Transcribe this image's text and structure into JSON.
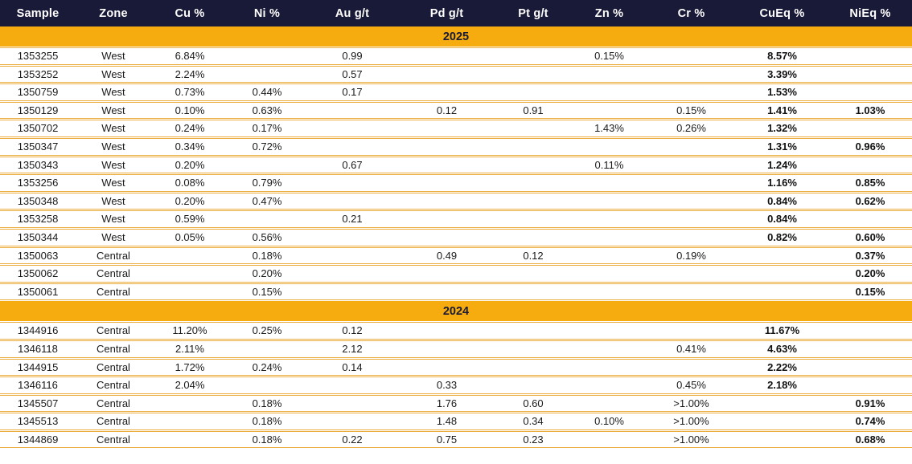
{
  "colors": {
    "header_bg": "#191938",
    "section_band": "#F6AC0E",
    "row_divider": "#ECAD3F",
    "header_text": "#FFFFFF",
    "section_text": "#191938"
  },
  "table": {
    "columns": [
      "Sample",
      "Zone",
      "Cu %",
      "Ni %",
      "Au g/t",
      "Pd g/t",
      "Pt g/t",
      "Zn %",
      "Cr %",
      "CuEq %",
      "NiEq %"
    ],
    "bold_columns": [
      9,
      10
    ],
    "sections": [
      {
        "year": "2025",
        "rows": [
          [
            "1353255",
            "West",
            "6.84%",
            "",
            "0.99",
            "",
            "",
            "0.15%",
            "",
            "8.57%",
            ""
          ],
          [
            "1353252",
            "West",
            "2.24%",
            "",
            "0.57",
            "",
            "",
            "",
            "",
            "3.39%",
            ""
          ],
          [
            "1350759",
            "West",
            "0.73%",
            "0.44%",
            "0.17",
            "",
            "",
            "",
            "",
            "1.53%",
            ""
          ],
          [
            "1350129",
            "West",
            "0.10%",
            "0.63%",
            "",
            "0.12",
            "0.91",
            "",
            "0.15%",
            "1.41%",
            "1.03%"
          ],
          [
            "1350702",
            "West",
            "0.24%",
            "0.17%",
            "",
            "",
            "",
            "1.43%",
            "0.26%",
            "1.32%",
            ""
          ],
          [
            "1350347",
            "West",
            "0.34%",
            "0.72%",
            "",
            "",
            "",
            "",
            "",
            "1.31%",
            "0.96%"
          ],
          [
            "1350343",
            "West",
            "0.20%",
            "",
            "0.67",
            "",
            "",
            "0.11%",
            "",
            "1.24%",
            ""
          ],
          [
            "1353256",
            "West",
            "0.08%",
            "0.79%",
            "",
            "",
            "",
            "",
            "",
            "1.16%",
            "0.85%"
          ],
          [
            "1350348",
            "West",
            "0.20%",
            "0.47%",
            "",
            "",
            "",
            "",
            "",
            "0.84%",
            "0.62%"
          ],
          [
            "1353258",
            "West",
            "0.59%",
            "",
            "0.21",
            "",
            "",
            "",
            "",
            "0.84%",
            ""
          ],
          [
            "1350344",
            "West",
            "0.05%",
            "0.56%",
            "",
            "",
            "",
            "",
            "",
            "0.82%",
            "0.60%"
          ],
          [
            "1350063",
            "Central",
            "",
            "0.18%",
            "",
            "0.49",
            "0.12",
            "",
            "0.19%",
            "",
            "0.37%"
          ],
          [
            "1350062",
            "Central",
            "",
            "0.20%",
            "",
            "",
            "",
            "",
            "",
            "",
            "0.20%"
          ],
          [
            "1350061",
            "Central",
            "",
            "0.15%",
            "",
            "",
            "",
            "",
            "",
            "",
            "0.15%"
          ]
        ]
      },
      {
        "year": "2024",
        "rows": [
          [
            "1344916",
            "Central",
            "11.20%",
            "0.25%",
            "0.12",
            "",
            "",
            "",
            "",
            "11.67%",
            ""
          ],
          [
            "1346118",
            "Central",
            "2.11%",
            "",
            "2.12",
            "",
            "",
            "",
            "0.41%",
            "4.63%",
            ""
          ],
          [
            "1344915",
            "Central",
            "1.72%",
            "0.24%",
            "0.14",
            "",
            "",
            "",
            "",
            "2.22%",
            ""
          ],
          [
            "1346116",
            "Central",
            "2.04%",
            "",
            "",
            "0.33",
            "",
            "",
            "0.45%",
            "2.18%",
            ""
          ],
          [
            "1345507",
            "Central",
            "",
            "0.18%",
            "",
            "1.76",
            "0.60",
            "",
            ">1.00%",
            "",
            "0.91%"
          ],
          [
            "1345513",
            "Central",
            "",
            "0.18%",
            "",
            "1.48",
            "0.34",
            "0.10%",
            ">1.00%",
            "",
            "0.74%"
          ],
          [
            "1344869",
            "Central",
            "",
            "0.18%",
            "0.22",
            "0.75",
            "0.23",
            "",
            ">1.00%",
            "",
            "0.68%"
          ]
        ]
      }
    ]
  }
}
